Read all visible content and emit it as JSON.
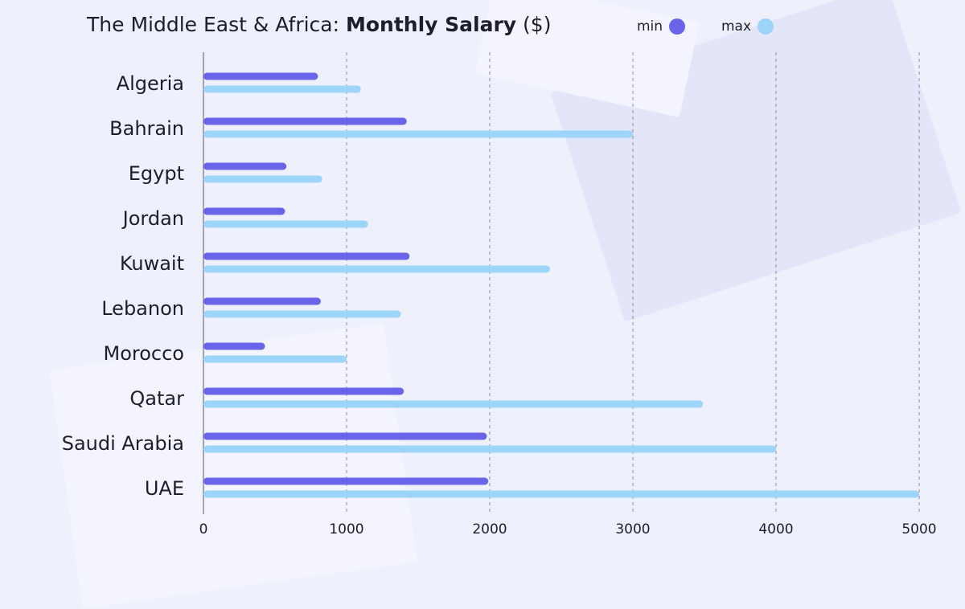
{
  "chart_data": {
    "type": "bar",
    "orientation": "horizontal",
    "title_prefix": "The Middle East & Africa: ",
    "title_bold": "Monthly Salary",
    "title_suffix": " ($)",
    "categories": [
      "Algeria",
      "Bahrain",
      "Egypt",
      "Jordan",
      "Kuwait",
      "Lebanon",
      "Morocco",
      "Qatar",
      "Saudi Arabia",
      "UAE"
    ],
    "series": [
      {
        "name": "min",
        "color": "#6a64e8",
        "values": [
          800,
          1420,
          580,
          570,
          1440,
          820,
          430,
          1400,
          1980,
          1990
        ]
      },
      {
        "name": "max",
        "color": "#9dd4fa",
        "values": [
          1100,
          3000,
          830,
          1150,
          2420,
          1380,
          1000,
          3490,
          4000,
          5000
        ]
      }
    ],
    "xticks": [
      "0",
      "1000",
      "2000",
      "3000",
      "4000",
      "5000"
    ],
    "xlim": [
      0,
      5000
    ],
    "grid": "vertical dashed",
    "legend_position": "top-right"
  }
}
